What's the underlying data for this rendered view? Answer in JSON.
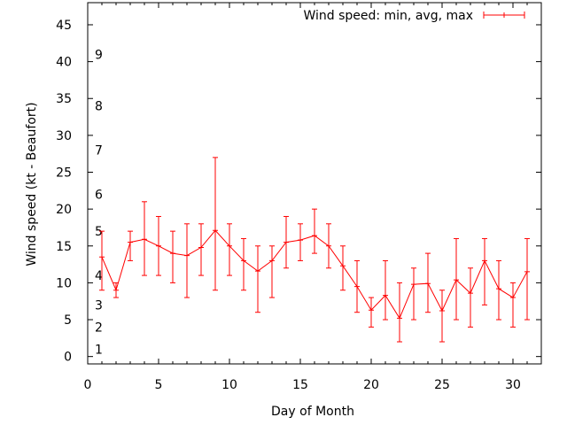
{
  "chart_data": {
    "type": "line",
    "title": "",
    "xlabel": "Day of Month",
    "ylabel": "Wind speed (kt - Beaufort)",
    "xlim": [
      0,
      32
    ],
    "ylim": [
      -1,
      48
    ],
    "xticks": [
      0,
      5,
      10,
      15,
      20,
      25,
      30
    ],
    "yticks": [
      0,
      5,
      10,
      15,
      20,
      25,
      30,
      35,
      40,
      45
    ],
    "beaufort_labels": [
      {
        "label": "1",
        "y": 1
      },
      {
        "label": "2",
        "y": 4
      },
      {
        "label": "3",
        "y": 7
      },
      {
        "label": "4",
        "y": 11
      },
      {
        "label": "5",
        "y": 17
      },
      {
        "label": "6",
        "y": 22
      },
      {
        "label": "7",
        "y": 28
      },
      {
        "label": "8",
        "y": 34
      },
      {
        "label": "9",
        "y": 41
      }
    ],
    "grid": false,
    "legend": "top-right",
    "series": [
      {
        "name": "Wind speed: min, avg, max",
        "color": "#ff0000",
        "x": [
          1,
          2,
          3,
          4,
          5,
          6,
          7,
          8,
          9,
          10,
          11,
          12,
          13,
          14,
          15,
          16,
          17,
          18,
          19,
          20,
          21,
          22,
          23,
          24,
          25,
          26,
          27,
          28,
          29,
          30,
          31
        ],
        "avg": [
          13.5,
          9.0,
          15.5,
          15.9,
          15.0,
          14.0,
          13.7,
          14.8,
          17.1,
          15.0,
          13.0,
          11.6,
          13.0,
          15.5,
          15.8,
          16.4,
          15.0,
          12.3,
          9.5,
          6.3,
          8.3,
          5.2,
          9.8,
          9.9,
          6.2,
          10.4,
          8.6,
          13.0,
          9.2,
          8.0,
          11.5
        ],
        "min": [
          9,
          8,
          13,
          11,
          11,
          10,
          8,
          11,
          9,
          11,
          9,
          6,
          8,
          12,
          13,
          14,
          12,
          9,
          6,
          4,
          5,
          2,
          5,
          6,
          2,
          5,
          4,
          7,
          5,
          4,
          5
        ],
        "max": [
          17,
          10,
          17,
          21,
          19,
          17,
          18,
          18,
          27,
          18,
          16,
          15,
          15,
          19,
          18,
          20,
          18,
          15,
          13,
          8,
          13,
          10,
          12,
          14,
          9,
          16,
          12,
          16,
          13,
          10,
          16
        ]
      }
    ]
  }
}
